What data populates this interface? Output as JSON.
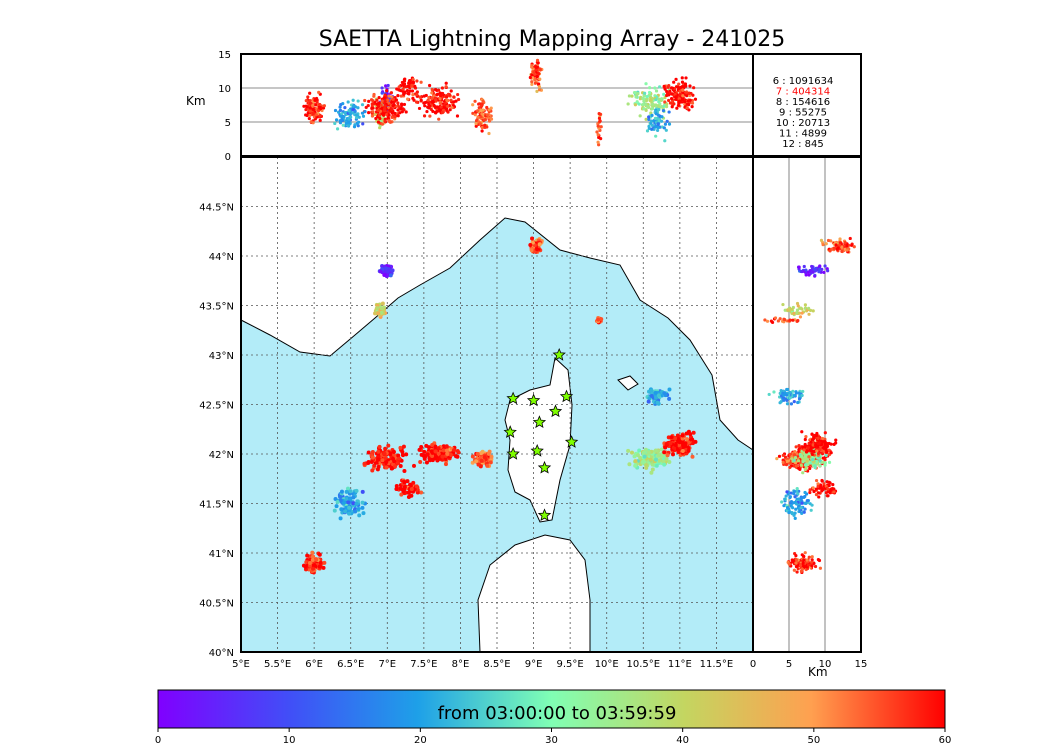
{
  "chart_data": {
    "type": "scatter",
    "title": "SAETTA Lightning Mapping Array - 241025",
    "xaxis_lon": {
      "range": [
        5.0,
        12.0
      ],
      "ticks": [
        "5°E",
        "5.5°E",
        "6°E",
        "6.5°E",
        "7°E",
        "7.5°E",
        "8°E",
        "8.5°E",
        "9°E",
        "9.5°E",
        "10°E",
        "10.5°E",
        "11°E",
        "11.5°E"
      ]
    },
    "yaxis_lat": {
      "range": [
        40.0,
        45.0
      ],
      "ticks": [
        "40°N",
        "40.5°N",
        "41°N",
        "41.5°N",
        "42°N",
        "42.5°N",
        "43°N",
        "43.5°N",
        "44°N",
        "44.5°N"
      ]
    },
    "altitude_axis": {
      "label": "Km",
      "range": [
        0,
        15
      ],
      "ticks": [
        "0",
        "5",
        "10",
        "15"
      ]
    },
    "grid": true,
    "station_counts": [
      {
        "label": "6 :  1091634",
        "highlight": false
      },
      {
        "label": "7 :   404314",
        "highlight": true
      },
      {
        "label": "8 :   154616",
        "highlight": false
      },
      {
        "label": "9 :    55275",
        "highlight": false
      },
      {
        "label": "10 :    20713",
        "highlight": false
      },
      {
        "label": "11 :     4899",
        "highlight": false
      },
      {
        "label": "12 :      845",
        "highlight": false
      }
    ],
    "colorbar": {
      "title": "from 03:00:00 to 03:59:59",
      "range": [
        0,
        60
      ],
      "ticks": [
        "0",
        "10",
        "20",
        "30",
        "40",
        "50",
        "60"
      ]
    },
    "stations": [
      {
        "lon": 9.35,
        "lat": 43.0
      },
      {
        "lon": 8.72,
        "lat": 42.56
      },
      {
        "lon": 9.0,
        "lat": 42.54
      },
      {
        "lon": 9.45,
        "lat": 42.58
      },
      {
        "lon": 9.08,
        "lat": 42.32
      },
      {
        "lon": 9.3,
        "lat": 42.43
      },
      {
        "lon": 8.68,
        "lat": 42.22
      },
      {
        "lon": 9.52,
        "lat": 42.12
      },
      {
        "lon": 8.72,
        "lat": 42.0
      },
      {
        "lon": 9.05,
        "lat": 42.03
      },
      {
        "lon": 9.15,
        "lat": 41.86
      },
      {
        "lon": 9.15,
        "lat": 41.38
      }
    ],
    "clusters": [
      {
        "lon": 9.03,
        "lat": 44.1,
        "alt": 12.0,
        "t": 55,
        "n": 70,
        "sx": 0.1,
        "sy": 0.12
      },
      {
        "lon": 7.0,
        "lat": 43.85,
        "alt": 8.0,
        "t": 5,
        "n": 50,
        "sx": 0.12,
        "sy": 0.08
      },
      {
        "lon": 6.9,
        "lat": 43.45,
        "alt": 6.0,
        "t": 40,
        "n": 40,
        "sx": 0.12,
        "sy": 0.1
      },
      {
        "lon": 7.0,
        "lat": 41.95,
        "alt": 7.0,
        "t": 60,
        "n": 160,
        "sx": 0.4,
        "sy": 0.16
      },
      {
        "lon": 7.7,
        "lat": 42.0,
        "alt": 8.0,
        "t": 60,
        "n": 150,
        "sx": 0.35,
        "sy": 0.12
      },
      {
        "lon": 6.5,
        "lat": 41.5,
        "alt": 6.0,
        "t": 20,
        "n": 90,
        "sx": 0.3,
        "sy": 0.2
      },
      {
        "lon": 6.0,
        "lat": 40.9,
        "alt": 7.0,
        "t": 58,
        "n": 110,
        "sx": 0.2,
        "sy": 0.12
      },
      {
        "lon": 8.3,
        "lat": 41.95,
        "alt": 6.0,
        "t": 55,
        "n": 90,
        "sx": 0.2,
        "sy": 0.1
      },
      {
        "lon": 10.6,
        "lat": 41.95,
        "alt": 8.0,
        "t": 35,
        "n": 120,
        "sx": 0.35,
        "sy": 0.15
      },
      {
        "lon": 11.0,
        "lat": 42.1,
        "alt": 9.0,
        "t": 60,
        "n": 140,
        "sx": 0.3,
        "sy": 0.15
      },
      {
        "lon": 10.7,
        "lat": 42.6,
        "alt": 5.0,
        "t": 20,
        "n": 60,
        "sx": 0.2,
        "sy": 0.12
      },
      {
        "lon": 9.9,
        "lat": 43.35,
        "alt": 4.0,
        "t": 55,
        "n": 20,
        "sx": 0.04,
        "sy": 0.04
      },
      {
        "lon": 7.3,
        "lat": 41.65,
        "alt": 10.0,
        "t": 60,
        "n": 60,
        "sx": 0.2,
        "sy": 0.12
      }
    ]
  }
}
